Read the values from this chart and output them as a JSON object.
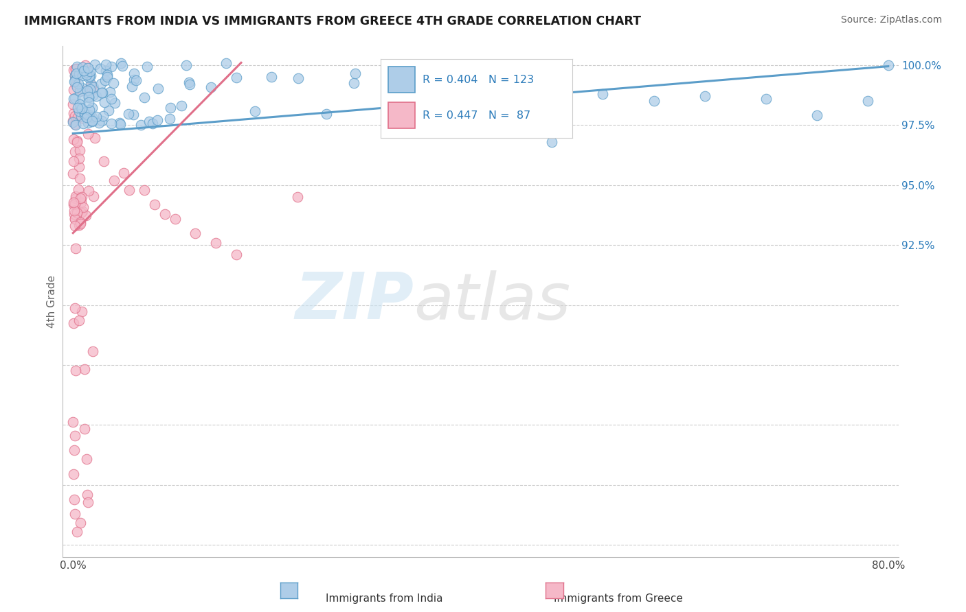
{
  "title": "IMMIGRANTS FROM INDIA VS IMMIGRANTS FROM GREECE 4TH GRADE CORRELATION CHART",
  "source": "Source: ZipAtlas.com",
  "ylabel": "4th Grade",
  "xlim": [
    -0.01,
    0.81
  ],
  "ylim": [
    0.795,
    1.008
  ],
  "xtick_positions": [
    0.0,
    0.1,
    0.2,
    0.3,
    0.4,
    0.5,
    0.6,
    0.7,
    0.8
  ],
  "xticklabels": [
    "0.0%",
    "",
    "",
    "",
    "",
    "",
    "",
    "",
    "80.0%"
  ],
  "ytick_positions": [
    0.8,
    0.825,
    0.85,
    0.875,
    0.9,
    0.925,
    0.95,
    0.975,
    1.0
  ],
  "yticklabels": [
    "",
    "",
    "",
    "",
    "",
    "92.5%",
    "95.0%",
    "97.5%",
    "100.0%"
  ],
  "india_color": "#aecde8",
  "india_edge": "#5b9dc9",
  "greece_color": "#f5b8c8",
  "greece_edge": "#e0708a",
  "india_R": 0.404,
  "india_N": 123,
  "greece_R": 0.447,
  "greece_N": 87,
  "legend_color": "#2b7bba",
  "india_trend_x": [
    0.0,
    0.8
  ],
  "india_trend_y": [
    0.9715,
    0.9995
  ],
  "greece_trend_x": [
    0.0,
    0.165
  ],
  "greece_trend_y": [
    0.93,
    1.001
  ]
}
